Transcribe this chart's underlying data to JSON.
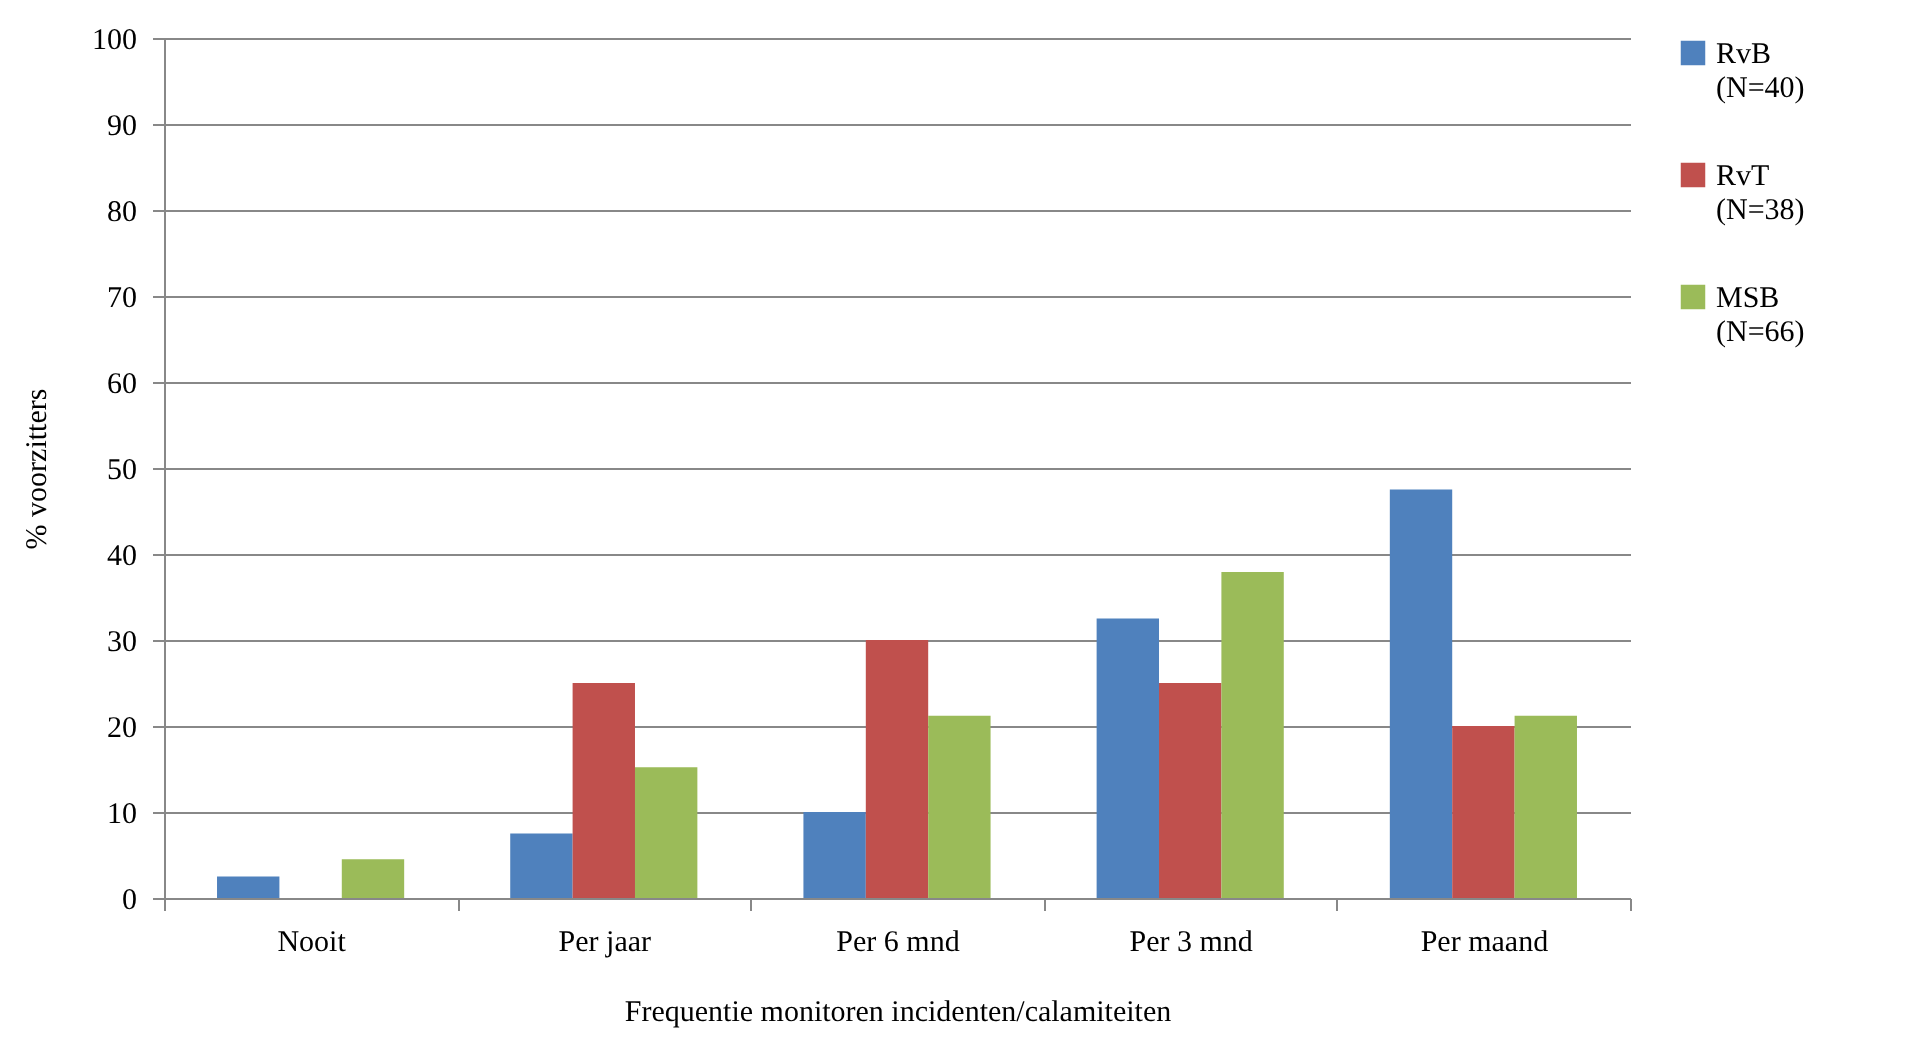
{
  "chart_data": {
    "type": "bar",
    "xlabel": "Frequentie monitoren incidenten/calamiteiten",
    "ylabel": "% voorzitters",
    "categories": [
      "Nooit",
      "Per jaar",
      "Per 6 mnd",
      "Per 3 mnd",
      "Per maand"
    ],
    "series": [
      {
        "name": "RvB (N=40)",
        "color": "#4f81bd",
        "values": [
          2.5,
          7.5,
          10,
          32.5,
          47.5
        ]
      },
      {
        "name": "RvT (N=38)",
        "color": "#c0504d",
        "values": [
          0,
          25,
          30,
          25,
          20
        ]
      },
      {
        "name": "MSB (N=66)",
        "color": "#9bbb59",
        "values": [
          4.5,
          15.2,
          21.2,
          37.9,
          21.2
        ]
      }
    ],
    "ylim": [
      0,
      100
    ],
    "yticks": [
      0,
      10,
      20,
      30,
      40,
      50,
      60,
      70,
      80,
      90,
      100
    ],
    "grid": "y",
    "legend": "right"
  }
}
